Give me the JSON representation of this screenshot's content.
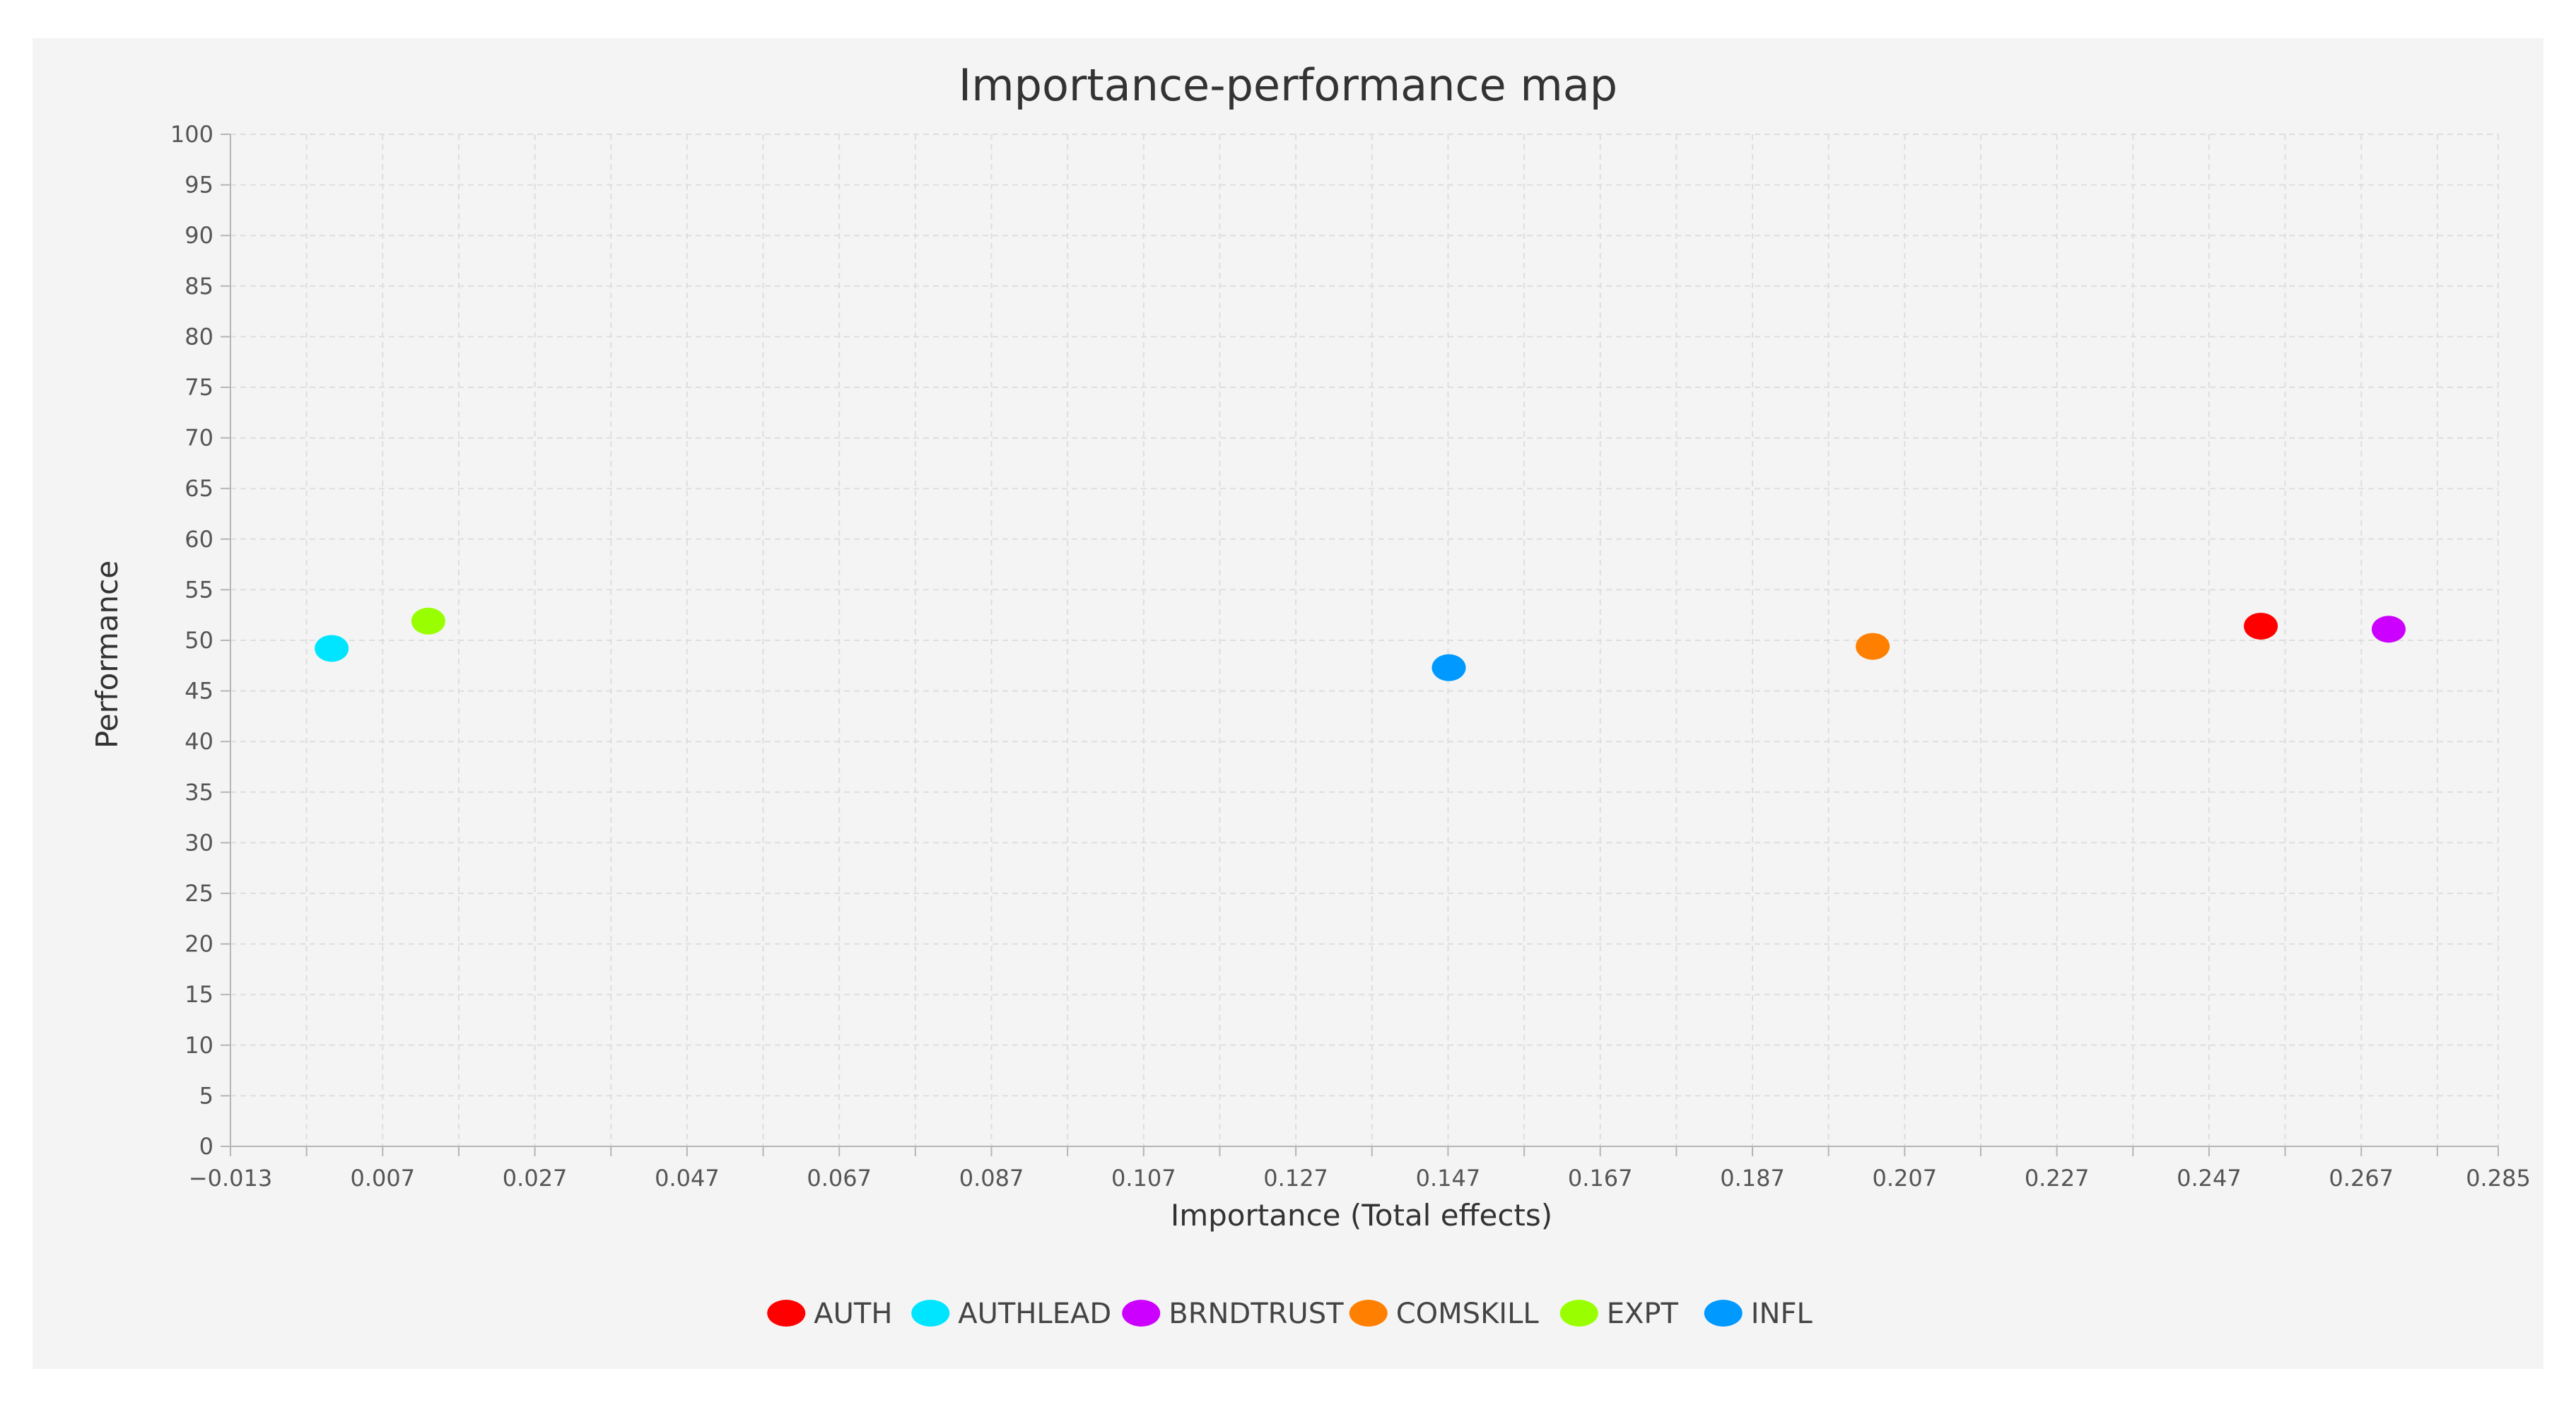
{
  "chart_data": {
    "type": "scatter",
    "title": "Importance-performance map",
    "xlabel": "Importance (Total effects)",
    "ylabel": "Performance",
    "xlim": [
      -0.013,
      0.285
    ],
    "ylim": [
      0,
      100
    ],
    "x_ticks": [
      "−0.013",
      "0.007",
      "0.027",
      "0.047",
      "0.067",
      "0.087",
      "0.107",
      "0.127",
      "0.147",
      "0.167",
      "0.187",
      "0.207",
      "0.227",
      "0.247",
      "0.267",
      "0.285"
    ],
    "y_ticks": [
      "0",
      "5",
      "10",
      "15",
      "20",
      "25",
      "30",
      "35",
      "40",
      "45",
      "50",
      "55",
      "60",
      "65",
      "70",
      "75",
      "80",
      "85",
      "90",
      "95",
      "100"
    ],
    "grid": true,
    "legend_position": "bottom",
    "series": [
      {
        "name": "AUTH",
        "color": "#ff0000",
        "x": 0.2538,
        "y": 51.4
      },
      {
        "name": "AUTHLEAD",
        "color": "#00e5ff",
        "x": 0.0003,
        "y": 49.2
      },
      {
        "name": "BRNDTRUST",
        "color": "#cc00ff",
        "x": 0.2706,
        "y": 51.1
      },
      {
        "name": "COMSKILL",
        "color": "#ff7f00",
        "x": 0.2028,
        "y": 49.4
      },
      {
        "name": "EXPT",
        "color": "#99ff00",
        "x": 0.013,
        "y": 51.9
      },
      {
        "name": "INFL",
        "color": "#0099ff",
        "x": 0.1471,
        "y": 47.3
      }
    ]
  }
}
